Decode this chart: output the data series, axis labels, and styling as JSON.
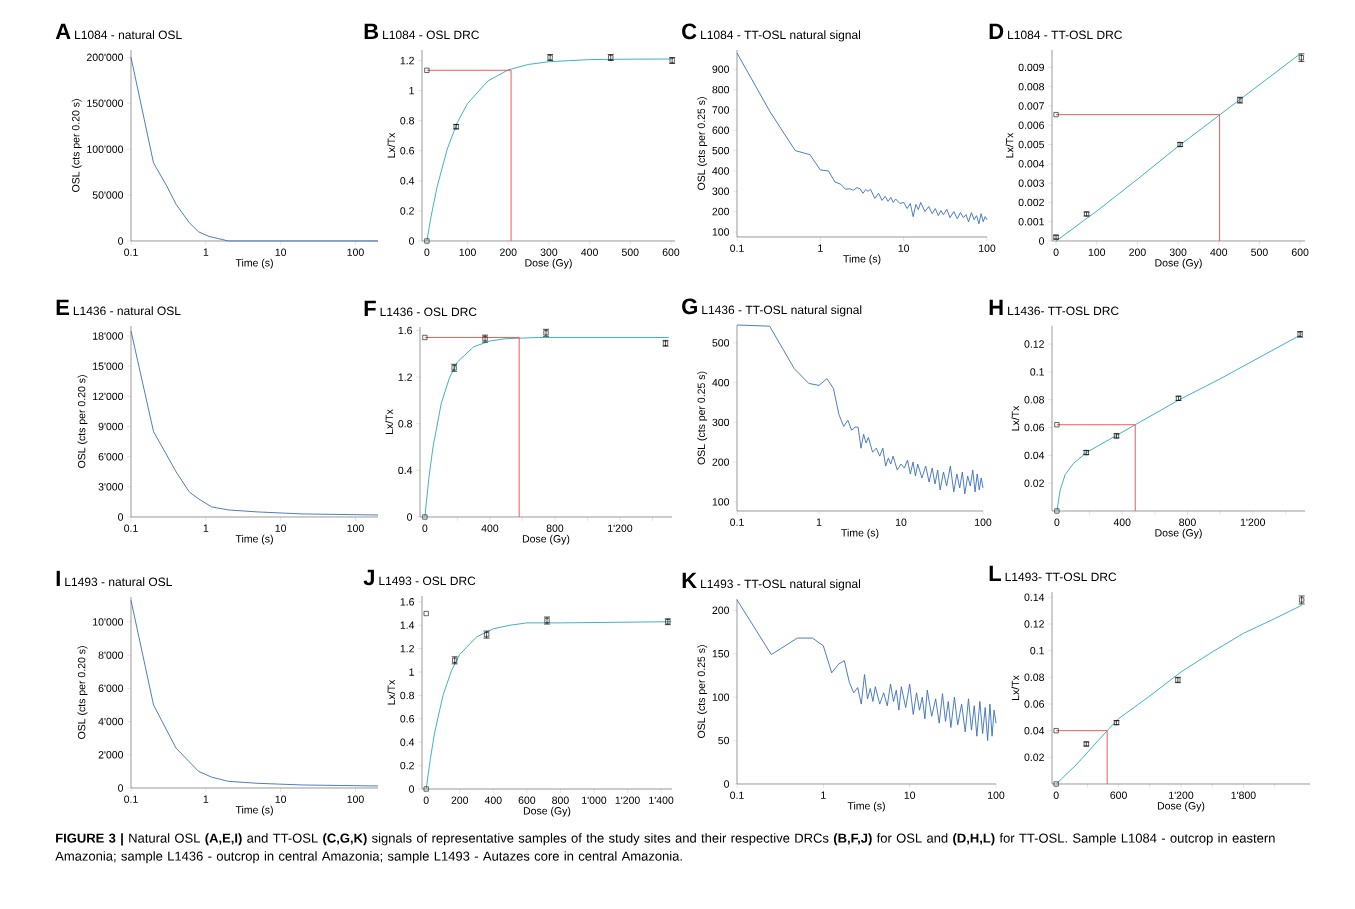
{
  "chart_data": [
    {
      "type": "line",
      "title": "L1084 - natural OSL",
      "annotations": [
        "A"
      ],
      "xlabel": "Time (s)",
      "ylabel": "OSL (cts per 0.20 s)",
      "log": "x",
      "xlim": [
        0.1,
        200
      ],
      "ylim": [
        0,
        208000
      ],
      "xticks": [
        0.1,
        1,
        10,
        100
      ],
      "yticks": [
        0,
        {
          "value": 50000,
          "label": "50'000"
        },
        {
          "value": 100000,
          "label": "100'000"
        },
        {
          "value": 150000,
          "label": "150'000"
        },
        {
          "value": 200000,
          "label": "200'000"
        }
      ],
      "series": [
        {
          "color": "#3a6fb8",
          "x": [
            0.1,
            0.2,
            0.3,
            0.4,
            0.6,
            0.8,
            1.1,
            2,
            200
          ],
          "values": [
            200000,
            85000,
            60000,
            40000,
            20000,
            10000,
            5000,
            0,
            0
          ]
        }
      ]
    },
    {
      "type": "scatter",
      "title": "L1084 - OSL DRC",
      "annotations": [
        "B"
      ],
      "xlabel": "Dose (Gy)",
      "ylabel": "Lx/Tx",
      "xlim": [
        -12,
        610
      ],
      "ylim": [
        0,
        1.27
      ],
      "xticks": [
        0,
        100,
        200,
        300,
        400,
        500,
        600
      ],
      "yticks": [
        0,
        0.2,
        0.4,
        0.6,
        0.8,
        1,
        1.2
      ],
      "series": [
        {
          "type": "line",
          "color": "#2aaabb",
          "x": [
            0,
            10,
            25,
            50,
            75,
            100,
            150,
            200,
            250,
            300,
            400,
            500,
            600
          ],
          "values": [
            0,
            0.159,
            0.359,
            0.611,
            0.789,
            0.914,
            1.064,
            1.138,
            1.174,
            1.192,
            1.206,
            1.209,
            1.21
          ]
        },
        {
          "type": "line",
          "color": "#f04a4a",
          "x": [
            0,
            207,
            207
          ],
          "values": [
            1.135,
            1.135,
            0
          ]
        },
        {
          "color": "#000000",
          "marker": "square",
          "x": [
            0,
            72,
            303,
            452,
            603
          ],
          "values": [
            0,
            0.76,
            1.22,
            1.22,
            1.2
          ],
          "errors": [
            null,
            0.015,
            0.02,
            0.02,
            0.02
          ]
        },
        {
          "color": "#000000",
          "marker": "square",
          "x": [
            0
          ],
          "values": [
            1.135
          ]
        }
      ]
    },
    {
      "type": "line",
      "title": "L1084 - TT-OSL natural signal",
      "annotations": [
        "C"
      ],
      "xlabel": "Time (s)",
      "ylabel": "OSL (cts per 0.25 s)",
      "log": "x",
      "xlim": [
        0.1,
        100
      ],
      "ylim": [
        75,
        995
      ],
      "xticks": [
        0.1,
        1,
        10,
        100
      ],
      "yticks": [
        100,
        200,
        300,
        400,
        500,
        600,
        700,
        800,
        900
      ],
      "series": [
        {
          "color": "#3a6fb8",
          "x": [
            0.1,
            0.25,
            0.5,
            0.75,
            1,
            1.25,
            1.5,
            1.75,
            2,
            2.25,
            2.5,
            2.75,
            3,
            3.25,
            3.5,
            3.75,
            4,
            4.5,
            5,
            5.5,
            6,
            6.5,
            7,
            7.5,
            8,
            9,
            10,
            11,
            12,
            13,
            14,
            15,
            16,
            18,
            20,
            22,
            24,
            26,
            28,
            30,
            33,
            36,
            40,
            44,
            48,
            52,
            56,
            60,
            65,
            70,
            75,
            80,
            85,
            90,
            95,
            100
          ],
          "values": [
            980,
            690,
            500,
            480,
            405,
            400,
            345,
            335,
            310,
            312,
            305,
            318,
            312,
            290,
            308,
            300,
            310,
            265,
            290,
            255,
            275,
            250,
            270,
            245,
            262,
            240,
            245,
            215,
            240,
            175,
            235,
            210,
            245,
            200,
            225,
            190,
            215,
            180,
            205,
            185,
            210,
            170,
            200,
            165,
            195,
            170,
            185,
            150,
            195,
            160,
            180,
            140,
            190,
            150,
            175,
            160
          ]
        }
      ]
    },
    {
      "type": "scatter",
      "title": "L1084 - TT-OSL DRC",
      "annotations": [
        "D"
      ],
      "xlabel": "Dose (Gy)",
      "ylabel": "Lx/Tx",
      "xlim": [
        -10,
        612
      ],
      "ylim": [
        0,
        0.0099
      ],
      "xticks": [
        0,
        100,
        200,
        300,
        400,
        500,
        600
      ],
      "yticks": [
        0,
        0.001,
        0.002,
        0.003,
        0.004,
        0.005,
        0.006,
        0.007,
        0.008,
        0.009
      ],
      "series": [
        {
          "type": "line",
          "color": "#2aaabb",
          "x": [
            0,
            100,
            200,
            300,
            400,
            500,
            600
          ],
          "values": [
            0,
            0.00155,
            0.0032,
            0.0049,
            0.0065,
            0.0081,
            0.0097
          ]
        },
        {
          "type": "line",
          "color": "#f04a4a",
          "x": [
            0,
            402,
            402
          ],
          "values": [
            0.00655,
            0.00655,
            0
          ]
        },
        {
          "color": "#000000",
          "marker": "square",
          "x": [
            0,
            75,
            305,
            452,
            603
          ],
          "values": [
            0.0002,
            0.0014,
            0.005,
            0.0073,
            0.0095
          ],
          "errors": [
            0.0001,
            0.0001,
            0.0001,
            0.00015,
            0.0002
          ]
        },
        {
          "color": "#000000",
          "marker": "square",
          "x": [
            0
          ],
          "values": [
            0.00655
          ]
        }
      ]
    },
    {
      "type": "line",
      "title": "L1436 - natural OSL",
      "annotations": [
        "E"
      ],
      "xlabel": "Time (s)",
      "ylabel": "OSL (cts per 0.20 s)",
      "log": "x",
      "xlim": [
        0.1,
        200
      ],
      "ylim": [
        0,
        19000
      ],
      "xticks": [
        0.1,
        1,
        10,
        100
      ],
      "yticks": [
        0,
        {
          "value": 3000,
          "label": "3'000"
        },
        {
          "value": 6000,
          "label": "6'000"
        },
        {
          "value": 9000,
          "label": "9'000"
        },
        {
          "value": 12000,
          "label": "12'000"
        },
        {
          "value": 15000,
          "label": "15'000"
        },
        {
          "value": 18000,
          "label": "18'000"
        }
      ],
      "series": [
        {
          "color": "#3a6fb8",
          "x": [
            0.1,
            0.2,
            0.4,
            0.6,
            0.8,
            1.2,
            2,
            5,
            20,
            200
          ],
          "values": [
            18500,
            8500,
            4500,
            2500,
            1800,
            1000,
            700,
            500,
            300,
            200
          ]
        }
      ]
    },
    {
      "type": "scatter",
      "title": "L1436 - OSL DRC",
      "annotations": [
        "F"
      ],
      "xlabel": "Dose (Gy)",
      "ylabel": "Lx/Tx",
      "xlim": [
        -30,
        1520
      ],
      "ylim": [
        0,
        1.63
      ],
      "xticks": [
        0,
        {
          "value": 200,
          "label": null
        },
        400,
        {
          "value": 600,
          "label": null
        },
        800,
        {
          "value": 1000,
          "label": null
        },
        {
          "value": 1200,
          "label": "1'200"
        },
        {
          "value": 1400,
          "label": null
        }
      ],
      "yticks": [
        0,
        0.4,
        0.8,
        1.2,
        1.6
      ],
      "series": [
        {
          "type": "line",
          "color": "#2aaabb",
          "x": [
            0,
            25,
            50,
            100,
            150,
            200,
            300,
            400,
            500,
            700,
            1000,
            1500
          ],
          "values": [
            0,
            0.34,
            0.6,
            0.97,
            1.19,
            1.33,
            1.46,
            1.51,
            1.53,
            1.54,
            1.54,
            1.54
          ]
        },
        {
          "type": "line",
          "color": "#f04a4a",
          "x": [
            0,
            580,
            580
          ],
          "values": [
            1.54,
            1.54,
            0
          ]
        },
        {
          "color": "#000000",
          "marker": "square",
          "x": [
            0,
            180,
            370,
            745,
            1480
          ],
          "values": [
            0,
            1.28,
            1.53,
            1.58,
            1.49
          ],
          "errors": [
            null,
            0.03,
            0.03,
            0.03,
            0.025
          ]
        },
        {
          "color": "#000000",
          "marker": "square",
          "x": [
            0
          ],
          "values": [
            1.54
          ]
        }
      ]
    },
    {
      "type": "line",
      "title": "L1436 - TT-OSL natural signal",
      "annotations": [
        "G"
      ],
      "xlabel": "Time (s)",
      "ylabel": "OSL (cts per 0.25 s)",
      "log": "x",
      "xlim": [
        0.1,
        100
      ],
      "ylim": [
        77,
        545
      ],
      "xticks": [
        0.1,
        1,
        10,
        100
      ],
      "yticks": [
        100,
        200,
        300,
        400,
        500
      ],
      "series": [
        {
          "color": "#3a6fb8",
          "x": [
            0.1,
            0.25,
            0.5,
            0.75,
            1,
            1.25,
            1.5,
            1.75,
            2,
            2.25,
            2.5,
            2.75,
            3,
            3.25,
            3.5,
            3.75,
            4,
            4.5,
            5,
            5.5,
            6,
            6.5,
            7,
            7.5,
            8,
            9,
            10,
            11,
            12,
            13,
            14,
            15,
            16,
            18,
            20,
            22,
            24,
            26,
            28,
            30,
            33,
            36,
            40,
            44,
            48,
            52,
            56,
            60,
            65,
            70,
            75,
            80,
            85,
            90,
            95,
            100
          ],
          "values": [
            545,
            542,
            435,
            398,
            393,
            410,
            385,
            320,
            290,
            305,
            280,
            288,
            288,
            235,
            270,
            248,
            262,
            225,
            235,
            215,
            235,
            190,
            210,
            195,
            215,
            180,
            195,
            185,
            205,
            170,
            200,
            165,
            195,
            160,
            190,
            150,
            185,
            145,
            180,
            130,
            175,
            140,
            190,
            125,
            170,
            135,
            175,
            120,
            165,
            140,
            180,
            125,
            170,
            130,
            160,
            135
          ]
        }
      ]
    },
    {
      "type": "scatter",
      "title": "L1436- TT-OSL DRC",
      "annotations": [
        "H"
      ],
      "xlabel": "Dose (Gy)",
      "ylabel": "Lx/Tx",
      "xlim": [
        -30,
        1520
      ],
      "ylim": [
        0,
        0.133
      ],
      "xticks": [
        0,
        {
          "value": 200,
          "label": null
        },
        400,
        {
          "value": 600,
          "label": null
        },
        800,
        {
          "value": 1000,
          "label": null
        },
        {
          "value": 1200,
          "label": "1'200"
        },
        {
          "value": 1400,
          "label": null
        }
      ],
      "yticks": [
        0.02,
        0.04,
        0.06,
        0.08,
        0.1,
        0.12
      ],
      "series": [
        {
          "type": "line",
          "color": "#2aaabb",
          "x": [
            0,
            20,
            50,
            100,
            180,
            300,
            480,
            750,
            1000,
            1250,
            1500
          ],
          "values": [
            0,
            0.015,
            0.026,
            0.034,
            0.042,
            0.05,
            0.062,
            0.08,
            0.095,
            0.111,
            0.127
          ]
        },
        {
          "type": "line",
          "color": "#f04a4a",
          "x": [
            0,
            480,
            480
          ],
          "values": [
            0.062,
            0.062,
            0
          ]
        },
        {
          "color": "#000000",
          "marker": "square",
          "x": [
            0,
            180,
            365,
            745,
            1490
          ],
          "values": [
            0,
            0.042,
            0.054,
            0.081,
            0.127
          ],
          "errors": [
            null,
            0.0015,
            0.0015,
            0.0015,
            0.002
          ]
        },
        {
          "color": "#000000",
          "marker": "square",
          "x": [
            0
          ],
          "values": [
            0.062
          ]
        }
      ]
    },
    {
      "type": "line",
      "title": "L1493 - natural OSL",
      "annotations": [
        "I"
      ],
      "xlabel": "Time (s)",
      "ylabel": "OSL (cts per 0.20 s)",
      "log": "x",
      "xlim": [
        0.1,
        200
      ],
      "ylim": [
        0,
        11500
      ],
      "xticks": [
        0.1,
        1,
        10,
        100
      ],
      "yticks": [
        0,
        {
          "value": 2000,
          "label": "2'000"
        },
        {
          "value": 4000,
          "label": "4'000"
        },
        {
          "value": 6000,
          "label": "6'000"
        },
        {
          "value": 8000,
          "label": "8'000"
        },
        {
          "value": 10000,
          "label": "10'000"
        }
      ],
      "series": [
        {
          "color": "#3a6fb8",
          "x": [
            0.1,
            0.2,
            0.4,
            0.8,
            1.2,
            2,
            5,
            20,
            200
          ],
          "values": [
            11300,
            5000,
            2400,
            1000,
            650,
            400,
            280,
            180,
            120
          ]
        }
      ]
    },
    {
      "type": "scatter",
      "title": "L1493 - OSL DRC",
      "annotations": [
        "J"
      ],
      "xlabel": "Dose (Gy)",
      "ylabel": "Lx/Tx",
      "xlim": [
        -25,
        1465
      ],
      "ylim": [
        0,
        1.65
      ],
      "xticks": [
        0,
        200,
        400,
        600,
        800,
        {
          "value": 1000,
          "label": "1'000"
        },
        {
          "value": 1200,
          "label": "1'200"
        },
        {
          "value": 1400,
          "label": "1'400"
        }
      ],
      "yticks": [
        0,
        0.2,
        0.4,
        0.6,
        0.8,
        1,
        1.2,
        1.4,
        1.6
      ],
      "series": [
        {
          "type": "line",
          "color": "#2aaabb",
          "x": [
            0,
            25,
            50,
            100,
            150,
            200,
            300,
            400,
            500,
            600,
            800,
            1460
          ],
          "values": [
            0,
            0.26,
            0.48,
            0.8,
            1.01,
            1.15,
            1.3,
            1.37,
            1.4,
            1.42,
            1.42,
            1.43
          ]
        },
        {
          "color": "#000000",
          "marker": "square",
          "x": [
            0,
            170,
            360,
            720,
            1440
          ],
          "values": [
            0,
            1.1,
            1.32,
            1.44,
            1.43
          ],
          "errors": [
            null,
            0.03,
            0.03,
            0.03,
            0.025
          ]
        },
        {
          "color": "#000000",
          "marker": "square",
          "x": [
            0
          ],
          "values": [
            1.5
          ]
        }
      ]
    },
    {
      "type": "line",
      "title": "L1493 - TT-OSL natural signal",
      "annotations": [
        "K"
      ],
      "xlabel": "Time (s)",
      "ylabel": "OSL (cts per 0.25 s)",
      "log": "x",
      "xlim": [
        0.1,
        100
      ],
      "ylim": [
        0,
        213
      ],
      "xticks": [
        0.1,
        1,
        10,
        100
      ],
      "yticks": [
        0,
        50,
        100,
        150,
        200
      ],
      "series": [
        {
          "color": "#3a6fb8",
          "x": [
            0.1,
            0.25,
            0.5,
            0.75,
            1,
            1.25,
            1.5,
            1.75,
            2,
            2.25,
            2.5,
            2.75,
            3,
            3.25,
            3.5,
            3.75,
            4,
            4.5,
            5,
            5.5,
            6,
            6.5,
            7,
            7.5,
            8,
            9,
            10,
            11,
            12,
            13,
            14,
            15,
            16,
            18,
            20,
            22,
            24,
            26,
            28,
            30,
            33,
            36,
            40,
            44,
            48,
            52,
            56,
            60,
            65,
            70,
            75,
            80,
            85,
            90,
            95,
            100
          ],
          "values": [
            212,
            149,
            168,
            168,
            159,
            128,
            138,
            142,
            117,
            105,
            111,
            92,
            126,
            98,
            110,
            95,
            112,
            92,
            105,
            90,
            115,
            95,
            108,
            85,
            112,
            88,
            115,
            80,
            105,
            85,
            100,
            75,
            108,
            78,
            98,
            70,
            104,
            72,
            95,
            65,
            100,
            68,
            92,
            60,
            98,
            62,
            90,
            55,
            95,
            58,
            88,
            50,
            92,
            55,
            85,
            70
          ]
        }
      ]
    },
    {
      "type": "scatter",
      "title": "L1493- TT-OSL DRC",
      "annotations": [
        "L"
      ],
      "xlabel": "Dose (Gy)",
      "ylabel": "Lx/Tx",
      "xlim": [
        -40,
        2440
      ],
      "ylim": [
        0,
        0.144
      ],
      "xticks": [
        0,
        {
          "value": 300,
          "label": null
        },
        600,
        {
          "value": 900,
          "label": null
        },
        {
          "value": 1200,
          "label": "1'200"
        },
        {
          "value": 1500,
          "label": null
        },
        {
          "value": 1800,
          "label": "1'800"
        },
        {
          "value": 2100,
          "label": null
        }
      ],
      "yticks": [
        0.02,
        0.04,
        0.06,
        0.08,
        0.1,
        0.12,
        0.14
      ],
      "series": [
        {
          "type": "line",
          "color": "#2aaabb",
          "x": [
            0,
            200,
            490,
            600,
            900,
            1200,
            1500,
            1800,
            2100,
            2360
          ],
          "values": [
            0,
            0.015,
            0.04,
            0.049,
            0.066,
            0.084,
            0.099,
            0.113,
            0.124,
            0.134
          ]
        },
        {
          "type": "line",
          "color": "#f04a4a",
          "x": [
            0,
            490,
            490
          ],
          "values": [
            0.04,
            0.04,
            0
          ]
        },
        {
          "color": "#000000",
          "marker": "square",
          "x": [
            0,
            290,
            580,
            1170,
            2360
          ],
          "values": [
            0,
            0.03,
            0.046,
            0.078,
            0.138
          ],
          "errors": [
            null,
            0.0015,
            0.0015,
            0.002,
            0.003
          ]
        },
        {
          "color": "#000000",
          "marker": "square",
          "x": [
            0
          ],
          "values": [
            0.04
          ]
        }
      ]
    },
    {
      "type": "other",
      "annotations": [
        "**FIGURE 3 |** Natural OSL **(A,E,I)** and TT-OSL **(C,G,K)** signals of representative samples of the study sites and their respective DRCs **(B,F,J)** for OSL and **(D,H,L)** for TT-OSL. Sample L1084 - outcrop in eastern Amazonia; sample L1436 - outcrop in central Amazonia; sample L1493 - Autazes core in central Amazonia."
      ]
    }
  ]
}
